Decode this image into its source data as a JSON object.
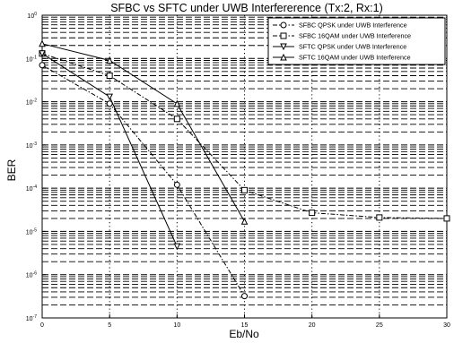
{
  "chart_data": {
    "type": "line",
    "title": "SFBC vs SFTC under UWB Interfererence (Tx:2, Rx:1)",
    "xlabel": "Eb/No",
    "ylabel": "BER",
    "xlim": [
      0,
      30
    ],
    "ylim": [
      1e-07,
      1
    ],
    "yscale": "log",
    "grid": true,
    "legend_position": "top-right",
    "x_ticks": [
      "0",
      "5",
      "10",
      "15",
      "20",
      "25",
      "30"
    ],
    "series": [
      {
        "name": "SFBC QPSK under UWB Interference",
        "marker": "circle",
        "line_style": "dash-dot",
        "x": [
          0,
          5,
          10,
          15
        ],
        "y": [
          0.07,
          0.009,
          0.00012,
          3.2e-07
        ]
      },
      {
        "name": "SFBC 16QAM under UWB Interference",
        "marker": "square",
        "line_style": "dash-dot",
        "x": [
          0,
          5,
          10,
          15,
          20,
          25,
          30
        ],
        "y": [
          0.13,
          0.04,
          0.004,
          9e-05,
          2.7e-05,
          2.1e-05,
          2e-05
        ]
      },
      {
        "name": "SFTC QPSK under UWB Interference",
        "marker": "triangle-down",
        "line_style": "solid",
        "x": [
          0,
          5,
          10
        ],
        "y": [
          0.13,
          0.013,
          4.5e-06
        ]
      },
      {
        "name": "SFTC 16QAM under UWB Interference",
        "marker": "triangle-up",
        "line_style": "solid",
        "x": [
          0,
          5,
          10,
          15
        ],
        "y": [
          0.22,
          0.09,
          0.009,
          1.7e-05
        ]
      }
    ]
  }
}
